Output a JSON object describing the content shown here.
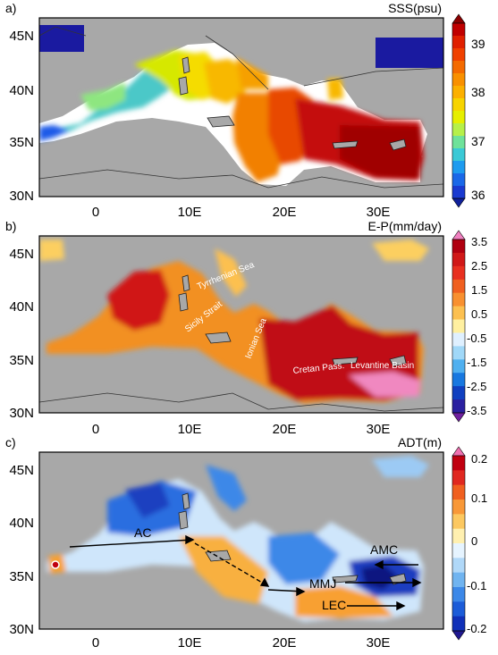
{
  "panels": [
    {
      "id": "a",
      "label": "a)",
      "title": "SSS(psu)",
      "yticks": [
        "45N",
        "40N",
        "35N",
        "30N"
      ],
      "xticks": [
        "0",
        "10E",
        "20E",
        "30E"
      ],
      "colorbar": {
        "labels": [
          "39",
          "38",
          "37",
          "36"
        ],
        "colors": [
          "#8b0000",
          "#c00000",
          "#e02000",
          "#f04000",
          "#f46a00",
          "#f99000",
          "#fcb000",
          "#f7d400",
          "#e6ef00",
          "#b6f04a",
          "#6fe29a",
          "#3ac9d6",
          "#1d9bef",
          "#1a68e8",
          "#1a3ad0",
          "#10209a"
        ]
      },
      "annotations": []
    },
    {
      "id": "b",
      "label": "b)",
      "title": "E-P(mm/day)",
      "yticks": [
        "45N",
        "40N",
        "35N",
        "30N"
      ],
      "xticks": [
        "0",
        "10E",
        "20E",
        "30E"
      ],
      "colorbar": {
        "labels": [
          "3.5",
          "2.5",
          "1.5",
          "0.5",
          "-0.5",
          "-1.5",
          "-2.5",
          "-3.5"
        ],
        "colors": [
          "#f080c0",
          "#b00010",
          "#d01818",
          "#e83020",
          "#f06020",
          "#f89030",
          "#fcc050",
          "#fff0a0",
          "#dff0ff",
          "#a0d8f8",
          "#50b0f0",
          "#1878e0",
          "#1040c0",
          "#2a20a0",
          "#7020a0"
        ]
      },
      "annotations": [
        "Tyrrhenian Sea",
        "Sicily Strait",
        "Ionian Sea",
        "Cretan Pass.",
        "Levantine Basin"
      ]
    },
    {
      "id": "c",
      "label": "c)",
      "title": "ADT(m)",
      "yticks": [
        "45N",
        "40N",
        "35N",
        "30N"
      ],
      "xticks": [
        "0",
        "10E",
        "20E",
        "30E"
      ],
      "colorbar": {
        "labels": [
          "0.2",
          "0.1",
          "0",
          "-0.1",
          "-0.2"
        ],
        "colors": [
          "#f070b0",
          "#c00010",
          "#e02820",
          "#f06020",
          "#f89838",
          "#fcc860",
          "#fff0b0",
          "#e6f4ff",
          "#b0d8f8",
          "#70b4f0",
          "#3c88e8",
          "#1c5cd8",
          "#1030b8",
          "#201890"
        ]
      },
      "annotations": [
        "AC",
        "AMC",
        "MMJ",
        "LEC"
      ]
    }
  ]
}
